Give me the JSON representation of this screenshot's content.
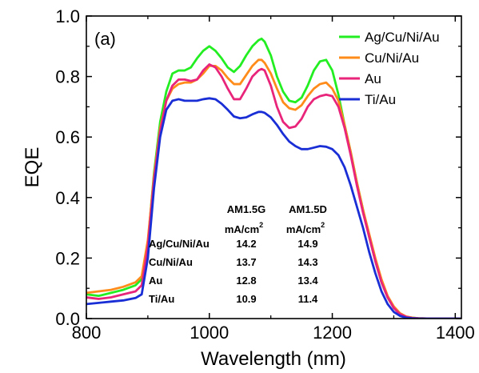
{
  "chart_data": {
    "type": "line",
    "panel_label": "(a)",
    "xlabel": "Wavelength (nm)",
    "ylabel": "EQE",
    "xlim": [
      800,
      1410
    ],
    "ylim": [
      0.0,
      1.0
    ],
    "xticks": [
      "800",
      "1000",
      "1200",
      "1400"
    ],
    "yticks": [
      "0.0",
      "0.2",
      "0.4",
      "0.6",
      "0.8",
      "1.0"
    ],
    "legend_position": "top-right",
    "series": [
      {
        "name": "Ag/Cu/Ni/Au",
        "color": "#22ee22",
        "x": [
          800,
          820,
          840,
          860,
          880,
          890,
          900,
          910,
          920,
          930,
          940,
          950,
          960,
          970,
          980,
          990,
          1000,
          1010,
          1020,
          1030,
          1040,
          1050,
          1060,
          1070,
          1080,
          1085,
          1090,
          1100,
          1110,
          1120,
          1130,
          1140,
          1150,
          1160,
          1170,
          1180,
          1190,
          1200,
          1210,
          1220,
          1230,
          1240,
          1250,
          1260,
          1270,
          1280,
          1290,
          1300,
          1310,
          1320,
          1330,
          1340,
          1360,
          1380,
          1400,
          1410
        ],
        "y": [
          0.08,
          0.075,
          0.085,
          0.095,
          0.11,
          0.13,
          0.25,
          0.48,
          0.65,
          0.75,
          0.81,
          0.82,
          0.82,
          0.83,
          0.86,
          0.885,
          0.9,
          0.885,
          0.86,
          0.83,
          0.815,
          0.835,
          0.87,
          0.9,
          0.92,
          0.925,
          0.915,
          0.87,
          0.8,
          0.75,
          0.72,
          0.715,
          0.73,
          0.77,
          0.82,
          0.85,
          0.855,
          0.82,
          0.74,
          0.64,
          0.55,
          0.45,
          0.36,
          0.27,
          0.19,
          0.12,
          0.07,
          0.035,
          0.015,
          0.006,
          0.003,
          0.001,
          0.0,
          0.0,
          0.0,
          0.0
        ]
      },
      {
        "name": "Cu/Ni/Au",
        "color": "#ff8c1a",
        "x": [
          800,
          820,
          840,
          860,
          880,
          890,
          900,
          910,
          920,
          930,
          940,
          950,
          960,
          970,
          980,
          990,
          1000,
          1010,
          1020,
          1030,
          1040,
          1050,
          1060,
          1070,
          1080,
          1085,
          1090,
          1100,
          1110,
          1120,
          1130,
          1140,
          1150,
          1160,
          1170,
          1180,
          1190,
          1200,
          1210,
          1220,
          1230,
          1240,
          1250,
          1260,
          1270,
          1280,
          1290,
          1300,
          1310,
          1320,
          1330,
          1340,
          1360,
          1380,
          1400,
          1410
        ],
        "y": [
          0.085,
          0.09,
          0.095,
          0.105,
          0.12,
          0.14,
          0.26,
          0.47,
          0.63,
          0.72,
          0.76,
          0.775,
          0.78,
          0.78,
          0.79,
          0.81,
          0.835,
          0.835,
          0.82,
          0.795,
          0.775,
          0.775,
          0.805,
          0.835,
          0.855,
          0.855,
          0.845,
          0.81,
          0.76,
          0.715,
          0.695,
          0.69,
          0.705,
          0.735,
          0.76,
          0.775,
          0.78,
          0.76,
          0.72,
          0.64,
          0.55,
          0.45,
          0.36,
          0.28,
          0.2,
          0.13,
          0.075,
          0.04,
          0.018,
          0.007,
          0.003,
          0.001,
          0.0,
          0.0,
          0.0,
          0.0
        ]
      },
      {
        "name": "Au",
        "color": "#e8257a",
        "x": [
          800,
          820,
          840,
          860,
          880,
          890,
          900,
          910,
          920,
          930,
          940,
          950,
          960,
          970,
          980,
          990,
          1000,
          1010,
          1020,
          1030,
          1040,
          1050,
          1060,
          1070,
          1080,
          1085,
          1090,
          1100,
          1110,
          1120,
          1130,
          1140,
          1150,
          1160,
          1170,
          1180,
          1190,
          1200,
          1210,
          1220,
          1230,
          1240,
          1250,
          1260,
          1270,
          1280,
          1290,
          1300,
          1310,
          1320,
          1330,
          1340,
          1360,
          1380,
          1400,
          1410
        ],
        "y": [
          0.07,
          0.065,
          0.07,
          0.08,
          0.09,
          0.11,
          0.24,
          0.46,
          0.62,
          0.72,
          0.77,
          0.79,
          0.79,
          0.785,
          0.79,
          0.82,
          0.84,
          0.83,
          0.8,
          0.76,
          0.725,
          0.725,
          0.76,
          0.8,
          0.82,
          0.825,
          0.82,
          0.77,
          0.7,
          0.65,
          0.63,
          0.635,
          0.66,
          0.7,
          0.725,
          0.735,
          0.74,
          0.735,
          0.7,
          0.63,
          0.54,
          0.44,
          0.35,
          0.27,
          0.19,
          0.12,
          0.07,
          0.035,
          0.015,
          0.006,
          0.002,
          0.001,
          0.0,
          0.0,
          0.0,
          0.0
        ]
      },
      {
        "name": "Ti/Au",
        "color": "#1a2ed6",
        "x": [
          800,
          820,
          840,
          860,
          880,
          890,
          900,
          910,
          920,
          930,
          940,
          950,
          960,
          970,
          980,
          990,
          1000,
          1010,
          1020,
          1030,
          1040,
          1050,
          1060,
          1070,
          1080,
          1085,
          1090,
          1100,
          1110,
          1120,
          1130,
          1140,
          1150,
          1160,
          1170,
          1180,
          1190,
          1200,
          1210,
          1220,
          1230,
          1240,
          1250,
          1260,
          1270,
          1280,
          1290,
          1300,
          1310,
          1320,
          1330,
          1340,
          1360,
          1380,
          1400,
          1410
        ],
        "y": [
          0.048,
          0.052,
          0.056,
          0.06,
          0.068,
          0.08,
          0.2,
          0.43,
          0.6,
          0.69,
          0.72,
          0.725,
          0.72,
          0.72,
          0.72,
          0.725,
          0.728,
          0.725,
          0.71,
          0.69,
          0.668,
          0.662,
          0.665,
          0.675,
          0.683,
          0.683,
          0.68,
          0.665,
          0.64,
          0.61,
          0.585,
          0.57,
          0.56,
          0.56,
          0.565,
          0.57,
          0.568,
          0.56,
          0.54,
          0.5,
          0.44,
          0.37,
          0.3,
          0.22,
          0.15,
          0.09,
          0.048,
          0.022,
          0.009,
          0.003,
          0.001,
          0.0,
          0.0,
          0.0,
          0.0,
          0.0
        ]
      }
    ],
    "table": {
      "headers": [
        "AM1.5G",
        "AM1.5D"
      ],
      "units_base": "mA/cm",
      "units_sup": "2",
      "rows": [
        {
          "label": "Ag/Cu/Ni/Au",
          "g": "14.2",
          "d": "14.9"
        },
        {
          "label": "Cu/Ni/Au",
          "g": "13.7",
          "d": "14.3"
        },
        {
          "label": "Au",
          "g": "12.8",
          "d": "13.4"
        },
        {
          "label": "Ti/Au",
          "g": "10.9",
          "d": "11.4"
        }
      ]
    }
  }
}
